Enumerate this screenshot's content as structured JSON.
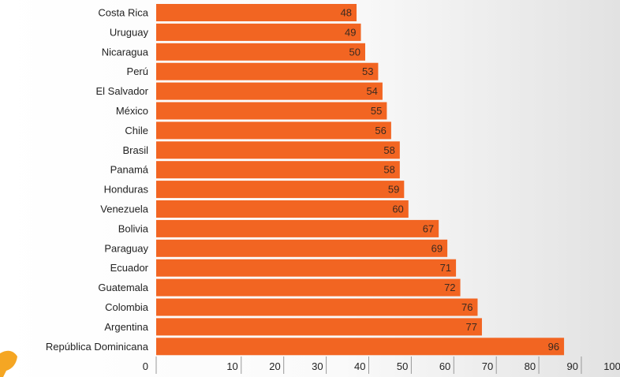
{
  "chart_data": {
    "type": "bar",
    "orientation": "horizontal",
    "categories": [
      "Costa Rica",
      "Uruguay",
      "Nicaragua",
      "Perú",
      "El Salvador",
      "México",
      "Chile",
      "Brasil",
      "Panamá",
      "Honduras",
      "Venezuela",
      "Bolivia",
      "Paraguay",
      "Ecuador",
      "Guatemala",
      "Colombia",
      "Argentina",
      "República Dominicana"
    ],
    "values": [
      48,
      49,
      50,
      53,
      54,
      55,
      56,
      58,
      58,
      59,
      60,
      67,
      69,
      71,
      72,
      76,
      77,
      96
    ],
    "xlim": [
      0,
      100
    ],
    "xticks": [
      "0",
      "10",
      "20",
      "30",
      "40",
      "50",
      "60",
      "70",
      "80",
      "90",
      "100"
    ],
    "title": "",
    "xlabel": "",
    "ylabel": "",
    "grid": false,
    "data_labels": true,
    "bar_color": "#f26522",
    "label_color": "#3a2a20"
  }
}
